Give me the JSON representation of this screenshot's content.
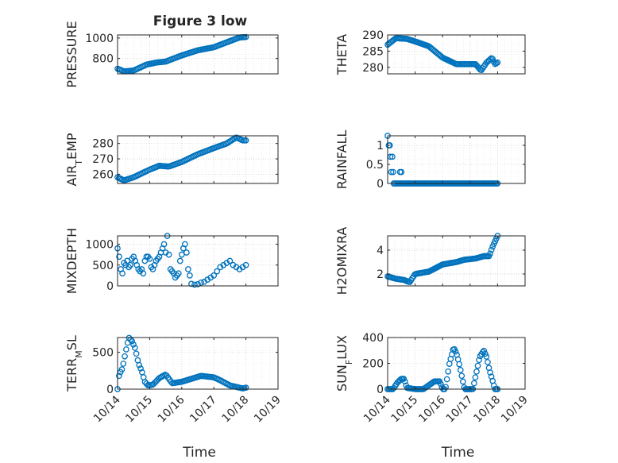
{
  "figure": {
    "title": "Figure 3 low",
    "xlabel": "Time",
    "x_ticks": [
      "10/14",
      "10/15",
      "10/16",
      "10/17",
      "10/18",
      "10/19"
    ],
    "marker_color": "#0072bd"
  },
  "chart_data": [
    {
      "type": "scatter",
      "ylabel": "PRESSURE",
      "xlim": [
        0,
        5
      ],
      "ylim": [
        650,
        1030
      ],
      "y_ticks": [
        800,
        1000
      ],
      "anchors": [
        [
          0.0,
          700
        ],
        [
          0.2,
          675
        ],
        [
          0.5,
          682
        ],
        [
          0.9,
          740
        ],
        [
          1.2,
          760
        ],
        [
          1.5,
          770
        ],
        [
          2.0,
          830
        ],
        [
          2.5,
          880
        ],
        [
          3.0,
          910
        ],
        [
          3.5,
          970
        ],
        [
          3.8,
          1005
        ],
        [
          4.0,
          1010
        ]
      ],
      "x_range": [
        0.0,
        4.0
      ],
      "n_points": 90
    },
    {
      "type": "scatter",
      "ylabel": "THETA",
      "xlim": [
        0,
        5
      ],
      "ylim": [
        278,
        290
      ],
      "y_ticks": [
        280,
        285,
        290
      ],
      "anchors": [
        [
          0.0,
          287
        ],
        [
          0.3,
          289
        ],
        [
          0.7,
          288.8
        ],
        [
          1.0,
          288
        ],
        [
          1.5,
          286.5
        ],
        [
          2.0,
          283
        ],
        [
          2.5,
          281
        ],
        [
          3.0,
          281
        ],
        [
          3.2,
          281
        ],
        [
          3.4,
          279
        ],
        [
          3.6,
          281.5
        ],
        [
          3.8,
          283
        ],
        [
          3.9,
          281
        ],
        [
          4.0,
          281.5
        ]
      ],
      "x_range": [
        0.0,
        4.0
      ],
      "n_points": 90
    },
    {
      "type": "scatter",
      "ylabel": "AIR_TEMP",
      "xlim": [
        0,
        5
      ],
      "ylim": [
        254,
        285
      ],
      "y_ticks": [
        260,
        270,
        280
      ],
      "anchors": [
        [
          0.0,
          258
        ],
        [
          0.2,
          256
        ],
        [
          0.5,
          258
        ],
        [
          1.0,
          263
        ],
        [
          1.3,
          265.5
        ],
        [
          1.6,
          265
        ],
        [
          2.0,
          268
        ],
        [
          2.5,
          273
        ],
        [
          3.0,
          277
        ],
        [
          3.4,
          280
        ],
        [
          3.7,
          284
        ],
        [
          3.9,
          282
        ],
        [
          4.0,
          282
        ]
      ],
      "x_range": [
        0.0,
        4.0
      ],
      "n_points": 90
    },
    {
      "type": "scatter",
      "ylabel": "RAINFALL",
      "xlim": [
        0,
        5
      ],
      "ylim": [
        0,
        1.25
      ],
      "y_ticks": [
        0,
        0.5,
        1
      ],
      "x": [
        0.0,
        0.04,
        0.08,
        0.1,
        0.13,
        0.17,
        0.2,
        0.45,
        0.5
      ],
      "y": [
        1.25,
        1.0,
        1.0,
        0.7,
        0.3,
        0.7,
        0.3,
        0.3,
        0.3
      ],
      "zero_range": [
        0.22,
        4.0
      ],
      "n_zero": 75
    },
    {
      "type": "scatter",
      "ylabel": "MIXDEPTH",
      "xlim": [
        0,
        5
      ],
      "ylim": [
        0,
        1200
      ],
      "y_ticks": [
        0,
        500,
        1000
      ],
      "x": [
        0.0,
        0.05,
        0.1,
        0.15,
        0.2,
        0.25,
        0.3,
        0.35,
        0.4,
        0.45,
        0.5,
        0.55,
        0.6,
        0.65,
        0.7,
        0.75,
        0.8,
        0.85,
        0.9,
        0.95,
        1.0,
        1.05,
        1.1,
        1.15,
        1.2,
        1.25,
        1.3,
        1.35,
        1.4,
        1.45,
        1.5,
        1.55,
        1.6,
        1.65,
        1.7,
        1.75,
        1.8,
        1.85,
        1.9,
        1.95,
        2.0,
        2.05,
        2.1,
        2.15,
        2.2,
        2.25,
        2.3,
        2.4,
        2.5,
        2.6,
        2.7,
        2.8,
        2.9,
        3.0,
        3.1,
        3.2,
        3.3,
        3.4,
        3.5,
        3.6,
        3.7,
        3.8,
        3.9,
        4.0
      ],
      "y": [
        900,
        700,
        400,
        300,
        550,
        500,
        600,
        450,
        500,
        650,
        700,
        600,
        500,
        400,
        350,
        400,
        300,
        600,
        700,
        700,
        650,
        450,
        400,
        500,
        600,
        650,
        700,
        800,
        900,
        1000,
        800,
        1200,
        750,
        400,
        350,
        300,
        200,
        250,
        300,
        600,
        750,
        900,
        1000,
        800,
        400,
        250,
        50,
        30,
        40,
        80,
        100,
        150,
        200,
        250,
        350,
        450,
        500,
        550,
        600,
        500,
        450,
        400,
        450,
        500
      ]
    },
    {
      "type": "scatter",
      "ylabel": "H2OMIXRA",
      "xlim": [
        0,
        5
      ],
      "ylim": [
        1,
        5.2
      ],
      "y_ticks": [
        2,
        4
      ],
      "anchors": [
        [
          0.0,
          1.8
        ],
        [
          0.3,
          1.6
        ],
        [
          0.6,
          1.5
        ],
        [
          0.8,
          1.3
        ],
        [
          1.0,
          2.0
        ],
        [
          1.5,
          2.2
        ],
        [
          2.0,
          2.8
        ],
        [
          2.5,
          3.0
        ],
        [
          2.8,
          3.2
        ],
        [
          3.2,
          3.3
        ],
        [
          3.5,
          3.5
        ],
        [
          3.7,
          3.5
        ],
        [
          3.8,
          4.2
        ],
        [
          4.0,
          5.2
        ]
      ],
      "x_range": [
        0.0,
        4.0
      ],
      "n_points": 90
    },
    {
      "type": "scatter",
      "ylabel": "TERR_MSL",
      "xlim": [
        0,
        5
      ],
      "ylim": [
        0,
        700
      ],
      "y_ticks": [
        0,
        500
      ],
      "anchors": [
        [
          0.0,
          0
        ],
        [
          0.05,
          200
        ],
        [
          0.15,
          280
        ],
        [
          0.25,
          500
        ],
        [
          0.35,
          700
        ],
        [
          0.45,
          650
        ],
        [
          0.55,
          550
        ],
        [
          0.65,
          350
        ],
        [
          0.75,
          250
        ],
        [
          0.85,
          100
        ],
        [
          0.95,
          50
        ],
        [
          1.1,
          60
        ],
        [
          1.3,
          150
        ],
        [
          1.5,
          200
        ],
        [
          1.7,
          80
        ],
        [
          2.0,
          100
        ],
        [
          2.3,
          140
        ],
        [
          2.6,
          180
        ],
        [
          3.0,
          160
        ],
        [
          3.2,
          120
        ],
        [
          3.5,
          50
        ],
        [
          3.7,
          30
        ],
        [
          3.9,
          10
        ],
        [
          4.0,
          20
        ]
      ],
      "x_range": [
        0.0,
        4.0
      ],
      "n_points": 90
    },
    {
      "type": "scatter",
      "ylabel": "SUN_FLUX",
      "xlim": [
        0,
        5
      ],
      "ylim": [
        0,
        400
      ],
      "y_ticks": [
        0,
        200,
        400
      ],
      "anchors": [
        [
          0.0,
          0
        ],
        [
          0.2,
          0
        ],
        [
          0.35,
          50
        ],
        [
          0.5,
          80
        ],
        [
          0.6,
          80
        ],
        [
          0.7,
          10
        ],
        [
          1.0,
          0
        ],
        [
          1.3,
          0
        ],
        [
          1.5,
          30
        ],
        [
          1.7,
          60
        ],
        [
          1.9,
          60
        ],
        [
          2.0,
          0
        ],
        [
          2.1,
          0
        ],
        [
          2.25,
          200
        ],
        [
          2.4,
          320
        ],
        [
          2.5,
          280
        ],
        [
          2.6,
          200
        ],
        [
          2.7,
          100
        ],
        [
          2.8,
          0
        ],
        [
          3.1,
          0
        ],
        [
          3.2,
          100
        ],
        [
          3.35,
          250
        ],
        [
          3.5,
          300
        ],
        [
          3.6,
          250
        ],
        [
          3.7,
          150
        ],
        [
          3.8,
          80
        ],
        [
          3.9,
          0
        ],
        [
          4.0,
          0
        ]
      ],
      "x_range": [
        0.0,
        4.0
      ],
      "n_points": 90
    }
  ]
}
